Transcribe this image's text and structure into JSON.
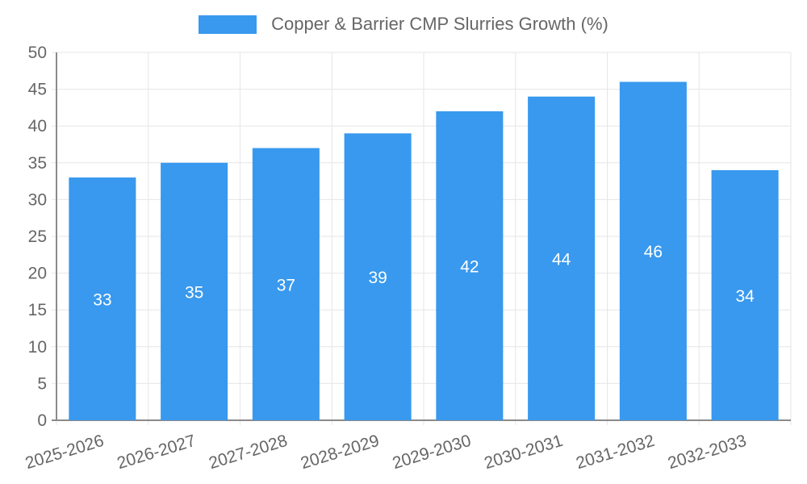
{
  "colors": {
    "bar": "#3899ee",
    "axis_line": "#8a8a8a",
    "grid_line": "#e6e6e6",
    "tick_text": "#666666",
    "value_text": "#ffffff",
    "legend_text": "#666666",
    "background": "#ffffff"
  },
  "legend": {
    "position": "top",
    "label": "Copper & Barrier CMP Slurries Growth (%)",
    "swatch": "legend-color-swatch"
  },
  "chart_data": {
    "type": "bar",
    "title": "Copper & Barrier CMP Slurries Growth (%)",
    "xlabel": "",
    "ylabel": "",
    "categories": [
      "2025-2026",
      "2026-2027",
      "2027-2028",
      "2028-2029",
      "2029-2030",
      "2030-2031",
      "2031-2032",
      "2032-2033"
    ],
    "values": [
      33,
      35,
      37,
      39,
      42,
      44,
      46,
      34
    ],
    "value_labels": [
      "33",
      "35",
      "37",
      "39",
      "42",
      "44",
      "46",
      "34"
    ],
    "ylim": [
      0,
      50
    ],
    "yticks": [
      0,
      5,
      10,
      15,
      20,
      25,
      30,
      35,
      40,
      45,
      50
    ],
    "grid": true,
    "legend_position": "top",
    "bar_color": "#3899ee"
  }
}
